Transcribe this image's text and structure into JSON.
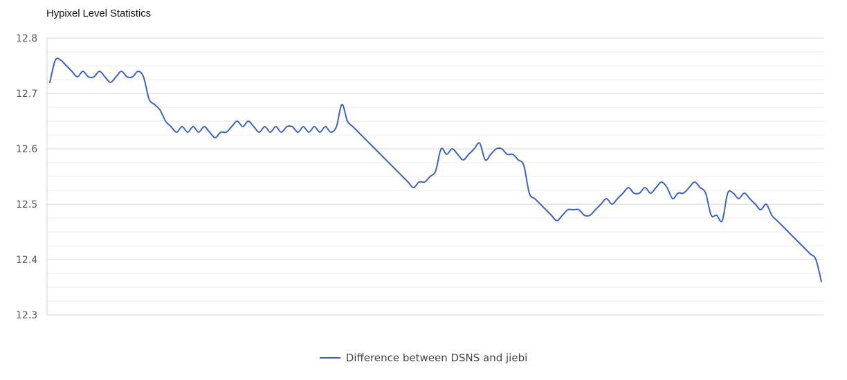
{
  "chart_data": {
    "type": "line",
    "title": "Hypixel Level Statistics",
    "xlabel": "",
    "ylabel": "",
    "ylim": [
      12.3,
      12.8
    ],
    "yticks": [
      "12.8",
      "12.7",
      "12.6",
      "12.5",
      "12.4",
      "12.3"
    ],
    "grid": true,
    "legend_position": "bottom",
    "series": [
      {
        "name": "Difference between DSNS and jiebi",
        "color": "#3a62c4",
        "values": [
          12.72,
          12.76,
          12.76,
          12.75,
          12.74,
          12.73,
          12.74,
          12.73,
          12.73,
          12.74,
          12.73,
          12.72,
          12.73,
          12.74,
          12.73,
          12.73,
          12.74,
          12.73,
          12.69,
          12.68,
          12.67,
          12.65,
          12.64,
          12.63,
          12.64,
          12.63,
          12.64,
          12.63,
          12.64,
          12.63,
          12.62,
          12.63,
          12.63,
          12.64,
          12.65,
          12.64,
          12.65,
          12.64,
          12.63,
          12.64,
          12.63,
          12.64,
          12.63,
          12.64,
          12.64,
          12.63,
          12.64,
          12.63,
          12.64,
          12.63,
          12.64,
          12.63,
          12.64,
          12.68,
          12.65,
          12.64,
          12.63,
          12.62,
          12.61,
          12.6,
          12.59,
          12.58,
          12.57,
          12.56,
          12.55,
          12.54,
          12.53,
          12.54,
          12.54,
          12.55,
          12.56,
          12.6,
          12.59,
          12.6,
          12.59,
          12.58,
          12.59,
          12.6,
          12.61,
          12.58,
          12.59,
          12.6,
          12.6,
          12.59,
          12.59,
          12.58,
          12.57,
          12.52,
          12.51,
          12.5,
          12.49,
          12.48,
          12.47,
          12.48,
          12.49,
          12.49,
          12.49,
          12.48,
          12.48,
          12.49,
          12.5,
          12.51,
          12.5,
          12.51,
          12.52,
          12.53,
          12.52,
          12.52,
          12.53,
          12.52,
          12.53,
          12.54,
          12.53,
          12.51,
          12.52,
          12.52,
          12.53,
          12.54,
          12.53,
          12.52,
          12.48,
          12.48,
          12.47,
          12.52,
          12.52,
          12.51,
          12.52,
          12.51,
          12.5,
          12.49,
          12.5,
          12.48,
          12.47,
          12.46,
          12.45,
          12.44,
          12.43,
          12.42,
          12.41,
          12.4,
          12.36
        ]
      }
    ]
  }
}
